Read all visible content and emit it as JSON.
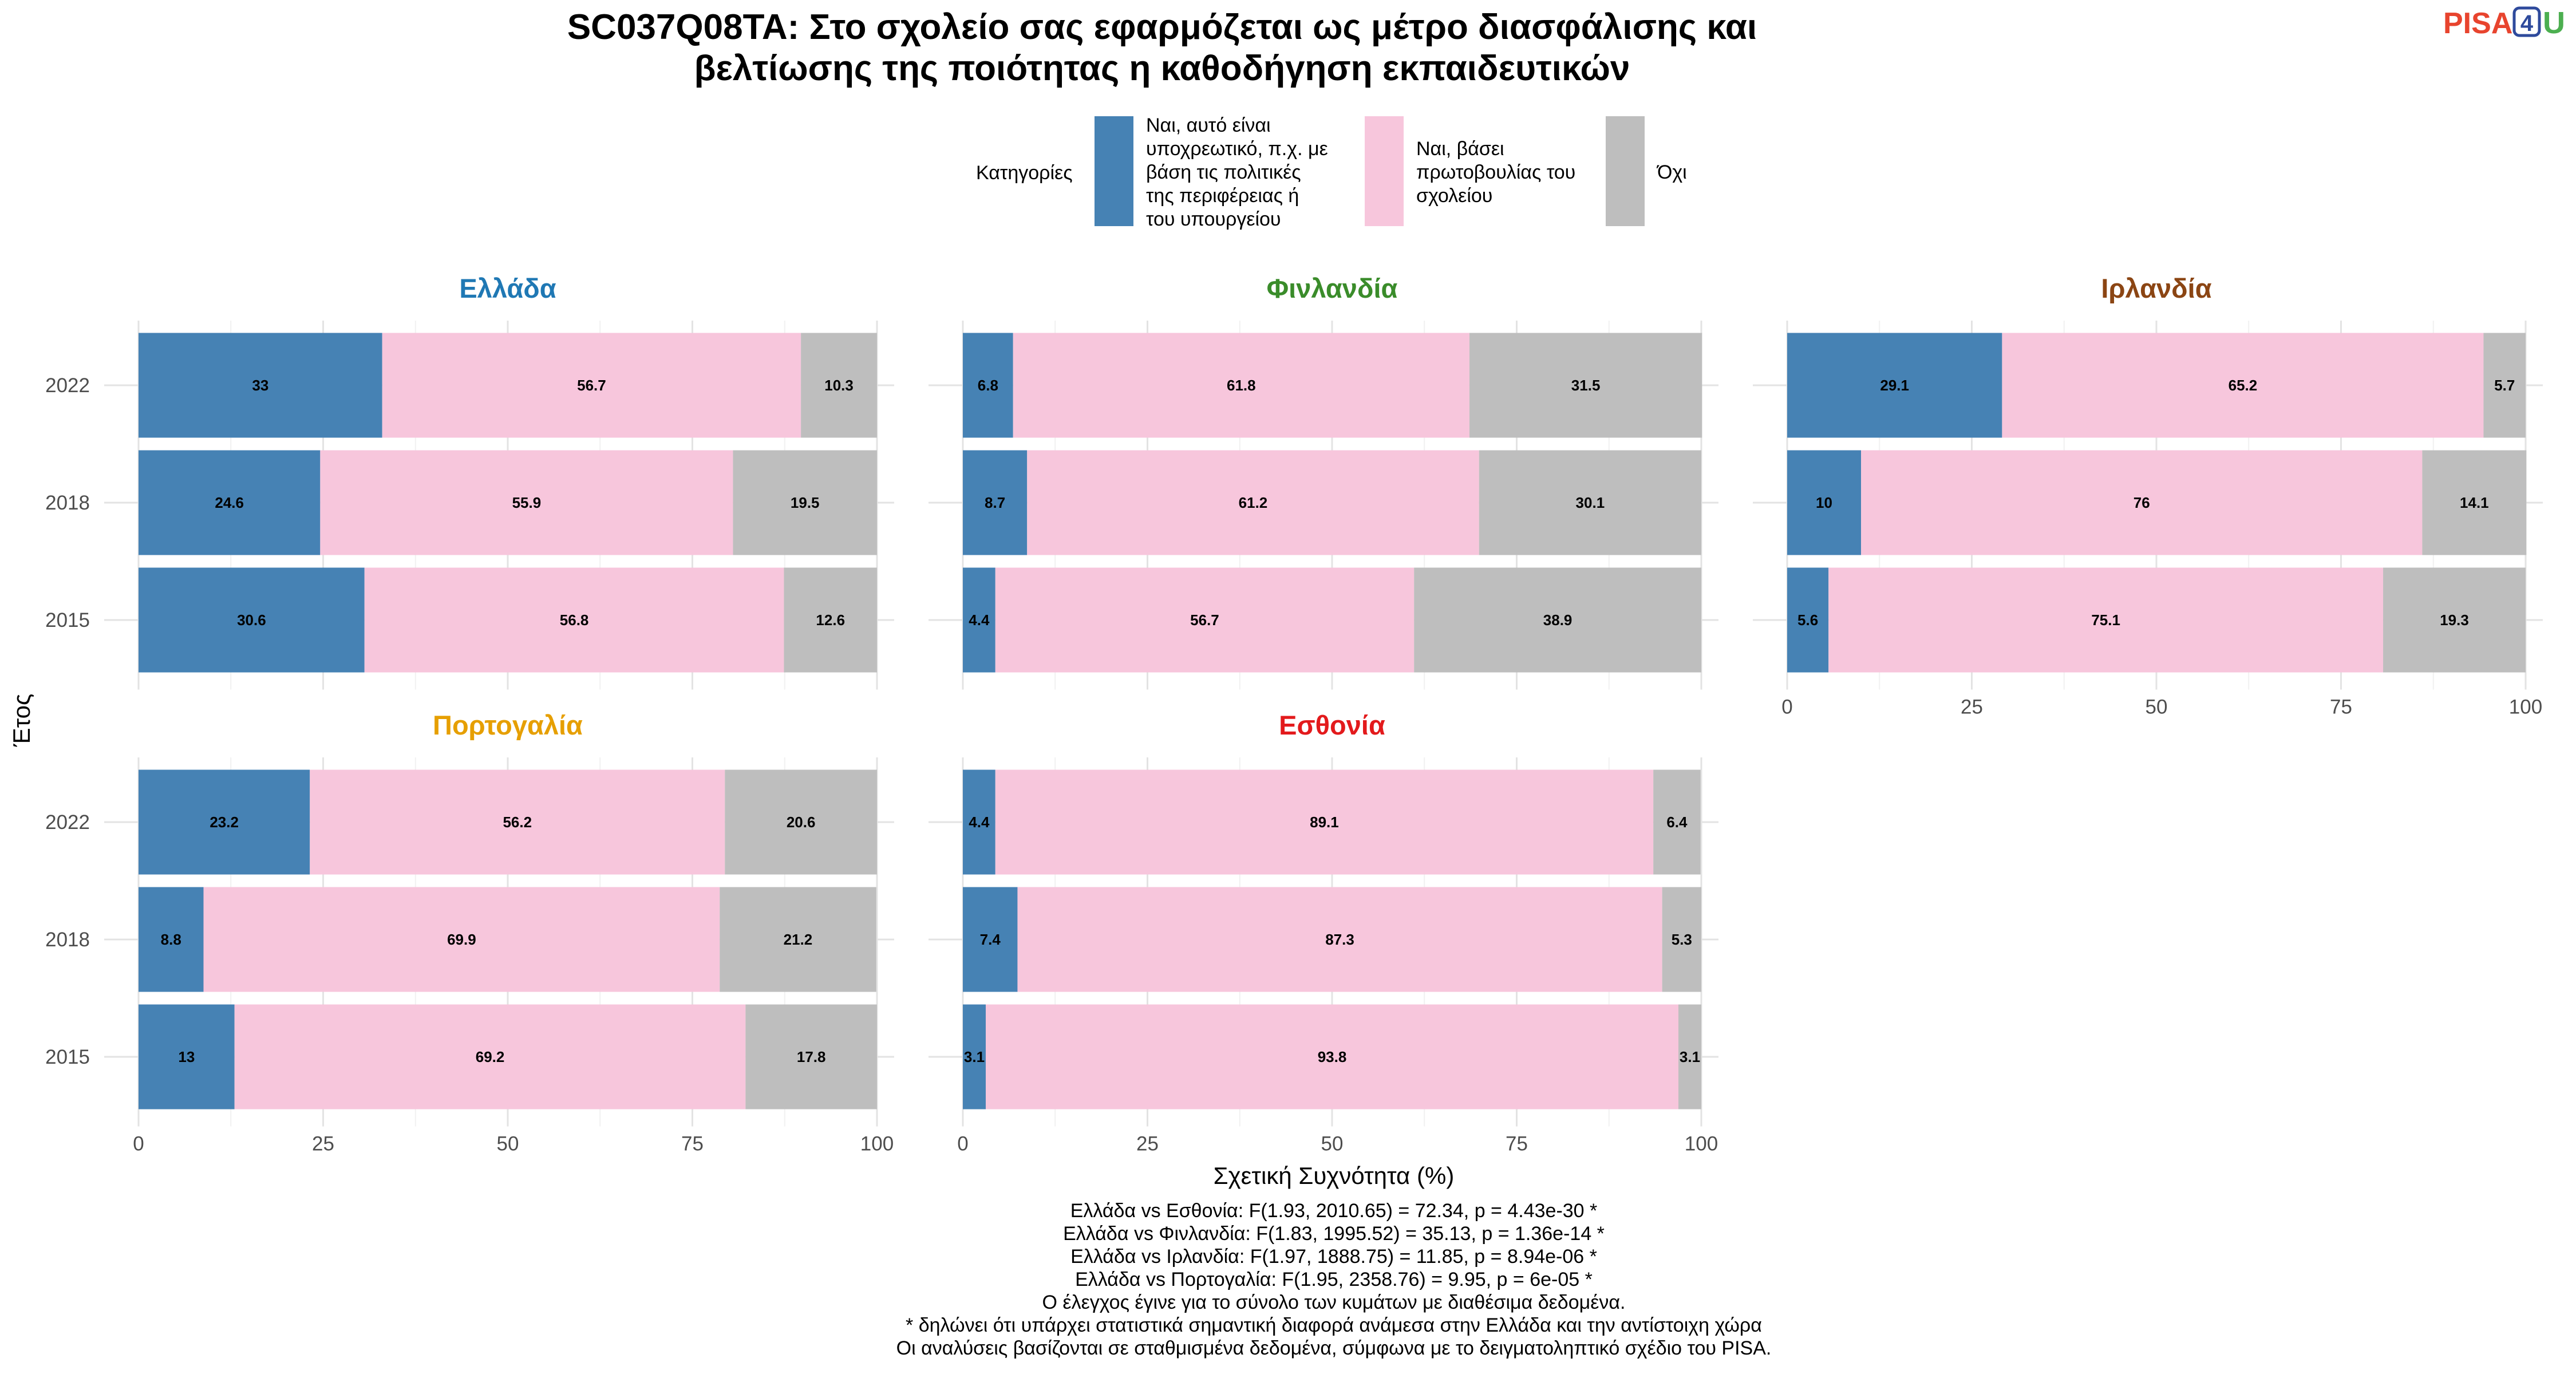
{
  "title_lines": [
    "SC037Q08TA: Στο σχολείο σας εφαρμόζεται ως μέτρο διασφάλισης και",
    "βελτίωσης της ποιότητας η καθοδήγηση εκπαιδευτικών"
  ],
  "logo": {
    "text": "PISA",
    "digit": "4",
    "letter": "U",
    "colors": {
      "text": "#E8442E",
      "digit": "#2E4A9C",
      "letter": "#4CAF50"
    }
  },
  "legend": {
    "title": "Κατηγορίες",
    "items": [
      {
        "lines": [
          "Ναι, αυτό είναι",
          "υποχρεωτικό, π.χ. με",
          "βάση τις πολιτικές",
          "της περιφέρειας ή",
          "του υπουργείου"
        ],
        "color": "#4682B4"
      },
      {
        "lines": [
          "Ναι, βάσει",
          "πρωτοβουλίας του",
          "σχολείου"
        ],
        "color": "#F7C6DC"
      },
      {
        "lines": [
          "Όχι"
        ],
        "color": "#BEBEBE"
      }
    ]
  },
  "chart_data": {
    "type": "bar",
    "orientation": "horizontal",
    "stacked": true,
    "xlabel": "Σχετική Συχνότητα (%)",
    "ylabel": "Έτος",
    "xlim": [
      0,
      100
    ],
    "xticks": [
      0,
      25,
      50,
      75,
      100
    ],
    "categories": [
      "2022",
      "2018",
      "2015"
    ],
    "series_colors": [
      "#4682B4",
      "#F7C6DC",
      "#BEBEBE"
    ],
    "panels": [
      {
        "name": "Ελλάδα",
        "color": "#1F78B4",
        "values": [
          [
            33,
            56.7,
            10.3
          ],
          [
            24.6,
            55.9,
            19.5
          ],
          [
            30.6,
            56.8,
            12.6
          ]
        ],
        "labels": [
          [
            "33",
            "56.7",
            "10.3"
          ],
          [
            "24.6",
            "55.9",
            "19.5"
          ],
          [
            "30.6",
            "56.8",
            "12.6"
          ]
        ]
      },
      {
        "name": "Φινλανδία",
        "color": "#3A8C2A",
        "values": [
          [
            6.8,
            61.8,
            31.5
          ],
          [
            8.7,
            61.2,
            30.1
          ],
          [
            4.4,
            56.7,
            38.9
          ]
        ],
        "labels": [
          [
            "6.8",
            "61.8",
            "31.5"
          ],
          [
            "8.7",
            "61.2",
            "30.1"
          ],
          [
            "4.4",
            "56.7",
            "38.9"
          ]
        ]
      },
      {
        "name": "Ιρλανδία",
        "color": "#8B4513",
        "values": [
          [
            29.1,
            65.2,
            5.7
          ],
          [
            10,
            76,
            14.1
          ],
          [
            5.6,
            75.1,
            19.3
          ]
        ],
        "labels": [
          [
            "29.1",
            "65.2",
            "5.7"
          ],
          [
            "10",
            "76",
            "14.1"
          ],
          [
            "5.6",
            "75.1",
            "19.3"
          ]
        ]
      },
      {
        "name": "Πορτογαλία",
        "color": "#E69F00",
        "values": [
          [
            23.2,
            56.2,
            20.6
          ],
          [
            8.8,
            69.9,
            21.2
          ],
          [
            13,
            69.2,
            17.8
          ]
        ],
        "labels": [
          [
            "23.2",
            "56.2",
            "20.6"
          ],
          [
            "8.8",
            "69.9",
            "21.2"
          ],
          [
            "13",
            "69.2",
            "17.8"
          ]
        ]
      },
      {
        "name": "Εσθονία",
        "color": "#E31A1C",
        "values": [
          [
            4.4,
            89.1,
            6.4
          ],
          [
            7.4,
            87.3,
            5.3
          ],
          [
            3.1,
            93.8,
            3.1
          ]
        ],
        "labels": [
          [
            "4.4",
            "89.1",
            "6.4"
          ],
          [
            "7.4",
            "87.3",
            "5.3"
          ],
          [
            "3.1",
            "93.8",
            "3.1"
          ]
        ]
      }
    ]
  },
  "notes": [
    "Ελλάδα vs Εσθονία: F(1.93, 2010.65) = 72.34, p = 4.43e-30 *",
    "Ελλάδα vs Φινλανδία: F(1.83, 1995.52) = 35.13, p = 1.36e-14 *",
    "Ελλάδα vs Ιρλανδία: F(1.97, 1888.75) = 11.85, p = 8.94e-06 *",
    "Ελλάδα vs Πορτογαλία: F(1.95, 2358.76) = 9.95, p = 6e-05 *",
    "Ο έλεγχος έγινε για το σύνολο των κυμάτων με διαθέσιμα δεδομένα.",
    "* δηλώνει ότι υπάρχει στατιστικά σημαντική διαφορά ανάμεσα στην Ελλάδα και την αντίστοιχη χώρα",
    "Οι αναλύσεις βασίζονται σε σταθμισμένα δεδομένα, σύμφωνα με το δειγματοληπτικό σχέδιο του PISA."
  ]
}
